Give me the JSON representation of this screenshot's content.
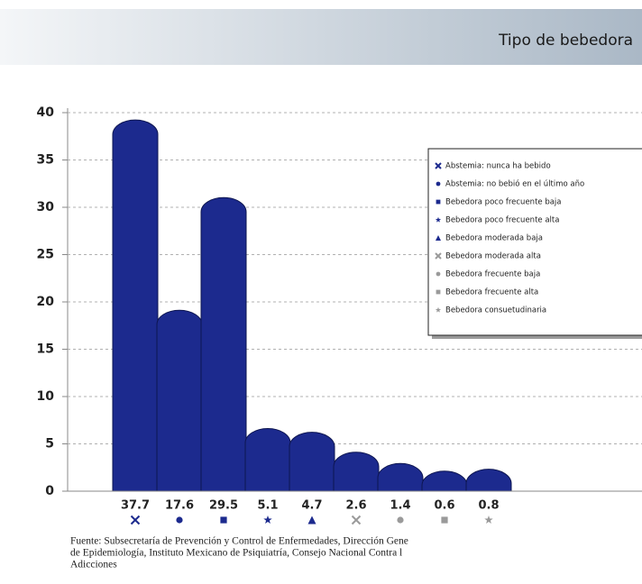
{
  "chart_data": {
    "type": "bar",
    "title": "Tipo de bebedora",
    "categories": [
      "Abstemia: nunca ha bebido",
      "Abstemia: no bebió en el último año",
      "Bebedora poco frecuente baja",
      "Bebedora poco frecuente alta",
      "Bebedora moderada baja",
      "Bebedora moderada alta",
      "Bebedora frecuente baja",
      "Bebedora frecuente alta",
      "Bebedora consuetudinaria"
    ],
    "values": [
      37.7,
      17.6,
      29.5,
      5.1,
      4.7,
      2.6,
      1.4,
      0.6,
      0.8
    ],
    "color": "#1c2a8e",
    "marker_colors": [
      "#1c2a8e",
      "#1c2a8e",
      "#1c2a8e",
      "#1c2a8e",
      "#1c2a8e",
      "#9a9a9a",
      "#9a9a9a",
      "#9a9a9a",
      "#9a9a9a"
    ],
    "markers": [
      "x",
      "circle",
      "square",
      "star",
      "triangle",
      "x",
      "circle",
      "square",
      "star"
    ],
    "ylim": [
      0,
      40
    ],
    "yticks": [
      0,
      5,
      10,
      15,
      20,
      25,
      30,
      35,
      40
    ],
    "grid": true,
    "legend": "right",
    "source": [
      "Fuente: Subsecretaría de Prevención y Control de Enfermedades, Dirección Gene",
      "de Epidemiología, Instituto Mexicano de Psiquiatría, Consejo Nacional Contra l",
      "Adicciones"
    ]
  }
}
